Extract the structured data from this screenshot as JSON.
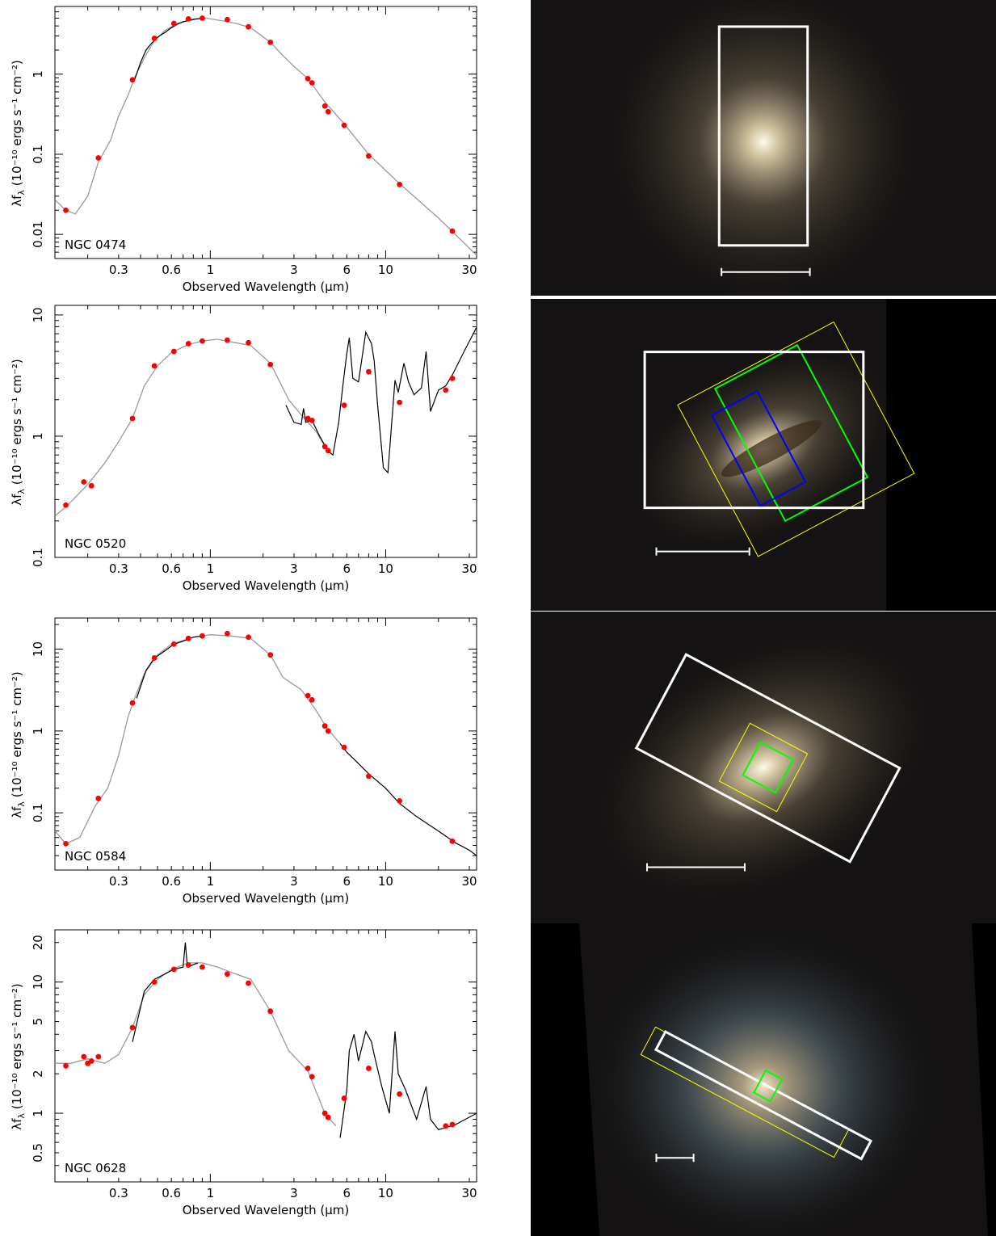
{
  "xlabel": "Observed Wavelength (μm)",
  "ylabel_main": "λf",
  "ylabel_sub": "λ",
  "ylabel_units": "(10⁻¹⁰ ergs s⁻¹ cm⁻²)",
  "x_ticks": [
    "0.3",
    "0.6",
    "1",
    "3",
    "6",
    "10",
    "30"
  ],
  "colors": {
    "points": "#ff0000",
    "optical_model": "#999999",
    "spectrum": "#000000",
    "aperture_large": "#ffffff",
    "aperture_mid": "#ffff00",
    "aperture_small": "#00ff00",
    "aperture_blue": "#0000ff"
  },
  "chart_data": [
    {
      "type": "line",
      "label": "NGC 0474",
      "xlim": [
        0.13,
        33
      ],
      "ylim": [
        0.005,
        7
      ],
      "log_x": true,
      "log_y": true,
      "y_ticks": [
        "0.01",
        "0.1",
        "1"
      ],
      "y_tick_values": [
        0.01,
        0.1,
        1
      ],
      "photometry": [
        [
          0.15,
          0.02
        ],
        [
          0.23,
          0.09
        ],
        [
          0.36,
          0.85
        ],
        [
          0.48,
          2.8
        ],
        [
          0.62,
          4.3
        ],
        [
          0.75,
          4.9
        ],
        [
          0.9,
          5.0
        ],
        [
          1.25,
          4.8
        ],
        [
          1.65,
          3.9
        ],
        [
          2.2,
          2.5
        ],
        [
          3.6,
          0.88
        ],
        [
          3.8,
          0.78
        ],
        [
          4.5,
          0.4
        ],
        [
          4.7,
          0.34
        ],
        [
          5.8,
          0.23
        ],
        [
          8.0,
          0.095
        ],
        [
          12,
          0.042
        ],
        [
          24,
          0.011
        ]
      ],
      "model": [
        [
          0.13,
          0.027
        ],
        [
          0.15,
          0.02
        ],
        [
          0.17,
          0.018
        ],
        [
          0.2,
          0.03
        ],
        [
          0.23,
          0.08
        ],
        [
          0.27,
          0.15
        ],
        [
          0.3,
          0.3
        ],
        [
          0.34,
          0.55
        ],
        [
          0.37,
          0.9
        ],
        [
          0.42,
          1.6
        ],
        [
          0.48,
          2.6
        ],
        [
          0.55,
          3.5
        ],
        [
          0.65,
          4.3
        ],
        [
          0.8,
          4.9
        ],
        [
          0.95,
          5.0
        ],
        [
          1.2,
          4.6
        ],
        [
          1.4,
          4.3
        ],
        [
          1.7,
          3.8
        ],
        [
          2.2,
          2.5
        ],
        [
          2.6,
          1.7
        ],
        [
          3.0,
          1.25
        ],
        [
          3.6,
          0.88
        ],
        [
          4.5,
          0.45
        ],
        [
          5.8,
          0.24
        ],
        [
          8,
          0.1
        ],
        [
          12,
          0.043
        ],
        [
          20,
          0.016
        ],
        [
          33,
          0.0055
        ]
      ],
      "spectrum": [
        [
          0.37,
          0.85
        ],
        [
          0.4,
          1.4
        ],
        [
          0.43,
          2.0
        ],
        [
          0.46,
          2.4
        ],
        [
          0.5,
          2.9
        ],
        [
          0.55,
          3.3
        ],
        [
          0.6,
          3.8
        ],
        [
          0.65,
          4.2
        ],
        [
          0.7,
          4.5
        ],
        [
          0.8,
          4.8
        ],
        [
          0.9,
          5.0
        ]
      ],
      "apertures": [
        {
          "color": "#ffffff",
          "w": 0.19,
          "h": 0.74,
          "angle": 0,
          "cx": 0.5,
          "cy": 0.46
        }
      ],
      "scale_bar": {
        "x1": 0.41,
        "x2": 0.6,
        "y": 0.92
      }
    },
    {
      "type": "line",
      "label": "NGC 0520",
      "xlim": [
        0.13,
        33
      ],
      "ylim": [
        0.1,
        12
      ],
      "log_x": true,
      "log_y": true,
      "y_ticks": [
        "0.1",
        "1",
        "10"
      ],
      "y_tick_values": [
        0.1,
        1,
        10
      ],
      "photometry": [
        [
          0.15,
          0.27
        ],
        [
          0.19,
          0.42
        ],
        [
          0.21,
          0.39
        ],
        [
          0.36,
          1.4
        ],
        [
          0.48,
          3.8
        ],
        [
          0.62,
          5.0
        ],
        [
          0.75,
          5.8
        ],
        [
          0.9,
          6.1
        ],
        [
          1.25,
          6.2
        ],
        [
          1.65,
          5.9
        ],
        [
          2.2,
          3.9
        ],
        [
          3.6,
          1.4
        ],
        [
          3.8,
          1.35
        ],
        [
          4.5,
          0.82
        ],
        [
          4.7,
          0.76
        ],
        [
          5.8,
          1.8
        ],
        [
          8.0,
          3.4
        ],
        [
          12,
          1.9
        ],
        [
          22,
          2.4
        ],
        [
          24,
          3.0
        ]
      ],
      "model": [
        [
          0.13,
          0.22
        ],
        [
          0.15,
          0.26
        ],
        [
          0.2,
          0.4
        ],
        [
          0.25,
          0.6
        ],
        [
          0.3,
          0.9
        ],
        [
          0.36,
          1.4
        ],
        [
          0.42,
          2.6
        ],
        [
          0.5,
          3.8
        ],
        [
          0.6,
          4.9
        ],
        [
          0.75,
          5.7
        ],
        [
          0.9,
          6.1
        ],
        [
          1.1,
          6.3
        ],
        [
          1.4,
          5.9
        ],
        [
          1.7,
          5.6
        ],
        [
          2.2,
          4.0
        ],
        [
          2.8,
          2.0
        ],
        [
          3.3,
          1.5
        ],
        [
          4.0,
          1.1
        ],
        [
          4.6,
          0.78
        ]
      ],
      "spectrum": [
        [
          2.7,
          1.8
        ],
        [
          3.0,
          1.3
        ],
        [
          3.3,
          1.25
        ],
        [
          3.4,
          1.7
        ],
        [
          3.5,
          1.3
        ],
        [
          3.8,
          1.35
        ],
        [
          4.2,
          1.0
        ],
        [
          4.7,
          0.75
        ],
        [
          5.0,
          0.7
        ],
        [
          5.4,
          1.3
        ],
        [
          5.7,
          2.6
        ],
        [
          6.0,
          4.8
        ],
        [
          6.2,
          6.5
        ],
        [
          6.5,
          3.0
        ],
        [
          7.0,
          2.8
        ],
        [
          7.7,
          7.2
        ],
        [
          8.3,
          5.8
        ],
        [
          8.6,
          4.2
        ],
        [
          9.0,
          1.8
        ],
        [
          9.7,
          0.55
        ],
        [
          10.3,
          0.5
        ],
        [
          11.3,
          2.9
        ],
        [
          11.8,
          2.3
        ],
        [
          12.7,
          4.0
        ],
        [
          13.5,
          2.8
        ],
        [
          14.5,
          2.2
        ],
        [
          16,
          2.5
        ],
        [
          17,
          5.0
        ],
        [
          18,
          1.6
        ],
        [
          20,
          2.4
        ],
        [
          22,
          2.6
        ],
        [
          24,
          3.2
        ],
        [
          28,
          5.0
        ],
        [
          33,
          7.9
        ]
      ],
      "apertures": [
        {
          "color": "#ffff00",
          "w": 0.38,
          "h": 0.55,
          "angle": -28,
          "cx": 0.57,
          "cy": 0.45
        },
        {
          "color": "#00ff00",
          "w": 0.2,
          "h": 0.48,
          "angle": -28,
          "cx": 0.56,
          "cy": 0.43
        },
        {
          "color": "#0000ff",
          "w": 0.11,
          "h": 0.33,
          "angle": -28,
          "cx": 0.49,
          "cy": 0.48
        },
        {
          "color": "#ffffff",
          "w": 0.47,
          "h": 0.5,
          "angle": 0,
          "cx": 0.48,
          "cy": 0.42
        }
      ],
      "scale_bar": {
        "x1": 0.27,
        "x2": 0.47,
        "y": 0.81
      }
    },
    {
      "type": "line",
      "label": "NGC 0584",
      "xlim": [
        0.13,
        33
      ],
      "ylim": [
        0.02,
        24
      ],
      "log_x": true,
      "log_y": true,
      "y_ticks": [
        "0.1",
        "1",
        "10"
      ],
      "y_tick_values": [
        0.1,
        1,
        10
      ],
      "photometry": [
        [
          0.15,
          0.042
        ],
        [
          0.23,
          0.15
        ],
        [
          0.36,
          2.2
        ],
        [
          0.48,
          7.8
        ],
        [
          0.62,
          11.5
        ],
        [
          0.75,
          13.5
        ],
        [
          0.9,
          14.5
        ],
        [
          1.25,
          15.5
        ],
        [
          1.65,
          14.0
        ],
        [
          2.2,
          8.5
        ],
        [
          3.6,
          2.7
        ],
        [
          3.8,
          2.4
        ],
        [
          4.5,
          1.15
        ],
        [
          4.7,
          1.0
        ],
        [
          5.8,
          0.63
        ],
        [
          8.0,
          0.28
        ],
        [
          12,
          0.14
        ],
        [
          24,
          0.045
        ]
      ],
      "model": [
        [
          0.13,
          0.06
        ],
        [
          0.15,
          0.042
        ],
        [
          0.18,
          0.05
        ],
        [
          0.22,
          0.12
        ],
        [
          0.26,
          0.2
        ],
        [
          0.3,
          0.5
        ],
        [
          0.34,
          1.5
        ],
        [
          0.37,
          2.5
        ],
        [
          0.42,
          5.0
        ],
        [
          0.5,
          8.5
        ],
        [
          0.6,
          11.5
        ],
        [
          0.8,
          14.0
        ],
        [
          1.0,
          15.0
        ],
        [
          1.3,
          14.5
        ],
        [
          1.7,
          13.5
        ],
        [
          2.2,
          8.5
        ],
        [
          2.6,
          4.5
        ],
        [
          3.3,
          3.2
        ],
        [
          4.0,
          1.8
        ],
        [
          4.6,
          1.1
        ],
        [
          5.5,
          0.7
        ]
      ],
      "spectrum": [
        [
          0.38,
          2.5
        ],
        [
          0.43,
          5.5
        ],
        [
          0.48,
          7.8
        ],
        [
          0.55,
          9.5
        ],
        [
          0.62,
          11.5
        ],
        [
          0.7,
          12.5
        ],
        [
          0.8,
          14
        ],
        [
          0.9,
          14.5
        ],
        [
          5.5,
          0.7
        ],
        [
          6.0,
          0.55
        ],
        [
          7.0,
          0.4
        ],
        [
          8.0,
          0.3
        ],
        [
          10,
          0.2
        ],
        [
          12,
          0.13
        ],
        [
          15,
          0.09
        ],
        [
          20,
          0.06
        ],
        [
          25,
          0.043
        ],
        [
          30,
          0.035
        ],
        [
          33,
          0.03
        ]
      ],
      "apertures": [
        {
          "color": "#ffffff",
          "w": 0.52,
          "h": 0.34,
          "angle": 28,
          "cx": 0.51,
          "cy": 0.47
        },
        {
          "color": "#ffff00",
          "w": 0.14,
          "h": 0.21,
          "angle": 28,
          "cx": 0.5,
          "cy": 0.5
        },
        {
          "color": "#00ff00",
          "w": 0.08,
          "h": 0.12,
          "angle": 28,
          "cx": 0.51,
          "cy": 0.5
        }
      ],
      "scale_bar": {
        "x1": 0.25,
        "x2": 0.46,
        "y": 0.82
      }
    },
    {
      "type": "line",
      "label": "NGC 0628",
      "xlim": [
        0.13,
        33
      ],
      "ylim": [
        0.3,
        25
      ],
      "log_x": true,
      "log_y": true,
      "y_ticks": [
        "0.5",
        "1",
        "2",
        "5",
        "10",
        "20"
      ],
      "y_tick_values": [
        0.5,
        1,
        2,
        5,
        10,
        20
      ],
      "photometry": [
        [
          0.15,
          2.3
        ],
        [
          0.19,
          2.7
        ],
        [
          0.2,
          2.4
        ],
        [
          0.21,
          2.5
        ],
        [
          0.23,
          2.7
        ],
        [
          0.36,
          4.5
        ],
        [
          0.48,
          10.0
        ],
        [
          0.62,
          12.5
        ],
        [
          0.75,
          13.5
        ],
        [
          0.9,
          13.0
        ],
        [
          1.25,
          11.5
        ],
        [
          1.65,
          9.8
        ],
        [
          2.2,
          6.0
        ],
        [
          3.6,
          2.2
        ],
        [
          3.8,
          1.9
        ],
        [
          4.5,
          1.0
        ],
        [
          4.7,
          0.93
        ],
        [
          5.8,
          1.3
        ],
        [
          8.0,
          2.2
        ],
        [
          12,
          1.4
        ],
        [
          22,
          0.8
        ],
        [
          24,
          0.82
        ]
      ],
      "model": [
        [
          0.13,
          2.4
        ],
        [
          0.16,
          2.4
        ],
        [
          0.2,
          2.6
        ],
        [
          0.25,
          2.4
        ],
        [
          0.3,
          2.8
        ],
        [
          0.36,
          4.5
        ],
        [
          0.42,
          8.0
        ],
        [
          0.5,
          10.5
        ],
        [
          0.6,
          12.5
        ],
        [
          0.75,
          14.0
        ],
        [
          0.9,
          14.0
        ],
        [
          1.1,
          13.0
        ],
        [
          1.4,
          11.5
        ],
        [
          1.7,
          10.5
        ],
        [
          2.2,
          6.0
        ],
        [
          2.8,
          3.0
        ],
        [
          3.6,
          2.1
        ],
        [
          4.5,
          1.0
        ],
        [
          5.2,
          0.8
        ]
      ],
      "spectrum": [
        [
          0.36,
          3.5
        ],
        [
          0.42,
          8.5
        ],
        [
          0.48,
          10.5
        ],
        [
          0.55,
          11.5
        ],
        [
          0.62,
          12.5
        ],
        [
          0.7,
          13
        ],
        [
          0.72,
          20
        ],
        [
          0.74,
          13
        ],
        [
          0.85,
          14
        ],
        [
          5.5,
          0.65
        ],
        [
          6.0,
          1.5
        ],
        [
          6.2,
          3.0
        ],
        [
          6.6,
          4.0
        ],
        [
          7.0,
          2.5
        ],
        [
          7.7,
          4.2
        ],
        [
          8.3,
          3.5
        ],
        [
          8.6,
          2.8
        ],
        [
          9.5,
          1.6
        ],
        [
          10.5,
          1.0
        ],
        [
          11.3,
          4.2
        ],
        [
          11.8,
          2.0
        ],
        [
          13,
          1.5
        ],
        [
          15,
          0.9
        ],
        [
          17,
          1.6
        ],
        [
          18,
          0.9
        ],
        [
          20,
          0.75
        ],
        [
          25,
          0.82
        ],
        [
          33,
          1.0
        ]
      ],
      "apertures": [
        {
          "color": "#ffff00",
          "w": 0.47,
          "h": 0.1,
          "angle": 28,
          "cx": 0.46,
          "cy": 0.54
        },
        {
          "color": "#ffffff",
          "w": 0.5,
          "h": 0.065,
          "angle": 28,
          "cx": 0.5,
          "cy": 0.55
        },
        {
          "color": "#00ff00",
          "w": 0.04,
          "h": 0.08,
          "angle": 28,
          "cx": 0.51,
          "cy": 0.52
        }
      ],
      "scale_bar": {
        "x1": 0.27,
        "x2": 0.35,
        "y": 0.75
      }
    }
  ]
}
